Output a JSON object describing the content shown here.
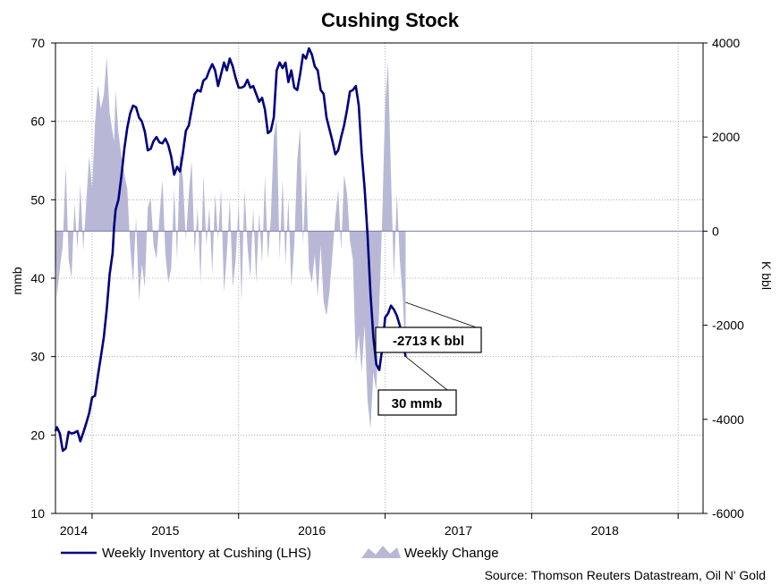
{
  "chart_data": {
    "type": "line",
    "title": "Cushing Stock",
    "ylabel_left": "mmb",
    "ylabel_right": "K bbl",
    "ylim_left": [
      10,
      70
    ],
    "yticks_left": [
      "10",
      "20",
      "30",
      "40",
      "50",
      "60",
      "70"
    ],
    "ylim_right": [
      -6000,
      4000
    ],
    "yticks_right": [
      "-6000",
      "-4000",
      "-2000",
      "0",
      "2000",
      "4000"
    ],
    "x_tick_labels": [
      "2014",
      "2015",
      "2016",
      "2017",
      "2018"
    ],
    "x_start": 2013.75,
    "x_end": 2018.17,
    "year_boundaries": [
      2014.0,
      2015.0,
      2016.0,
      2017.0,
      2018.0
    ],
    "series": [
      {
        "name": "Weekly Inventory at Cushing (LHS)",
        "axis": "left",
        "color": "#00007f",
        "points": [
          [
            2013.75,
            20.5
          ],
          [
            2013.76,
            21.0
          ],
          [
            2013.78,
            20.2
          ],
          [
            2013.8,
            18.0
          ],
          [
            2013.82,
            18.3
          ],
          [
            2013.84,
            20.4
          ],
          [
            2013.86,
            20.2
          ],
          [
            2013.88,
            20.3
          ],
          [
            2013.9,
            20.5
          ],
          [
            2013.92,
            19.2
          ],
          [
            2013.94,
            20.3
          ],
          [
            2013.96,
            21.5
          ],
          [
            2013.98,
            22.8
          ],
          [
            2014.0,
            24.8
          ],
          [
            2014.02,
            25.0
          ],
          [
            2014.04,
            27.6
          ],
          [
            2014.06,
            30.0
          ],
          [
            2014.08,
            32.5
          ],
          [
            2014.1,
            36.0
          ],
          [
            2014.12,
            40.5
          ],
          [
            2014.14,
            43.2
          ],
          [
            2014.15,
            46.5
          ],
          [
            2014.16,
            48.7
          ],
          [
            2014.18,
            50.0
          ],
          [
            2014.2,
            53.0
          ],
          [
            2014.22,
            56.5
          ],
          [
            2014.24,
            59.2
          ],
          [
            2014.26,
            61.0
          ],
          [
            2014.28,
            62.0
          ],
          [
            2014.3,
            61.8
          ],
          [
            2014.32,
            60.5
          ],
          [
            2014.34,
            60.0
          ],
          [
            2014.36,
            58.7
          ],
          [
            2014.38,
            56.3
          ],
          [
            2014.4,
            56.5
          ],
          [
            2014.42,
            57.5
          ],
          [
            2014.44,
            58.0
          ],
          [
            2014.46,
            57.3
          ],
          [
            2014.48,
            57.2
          ],
          [
            2014.5,
            57.8
          ],
          [
            2014.52,
            57.0
          ],
          [
            2014.54,
            55.5
          ],
          [
            2014.56,
            53.2
          ],
          [
            2014.58,
            54.2
          ],
          [
            2014.6,
            53.6
          ],
          [
            2014.62,
            56.0
          ],
          [
            2014.64,
            58.8
          ],
          [
            2014.66,
            59.5
          ],
          [
            2014.68,
            61.5
          ],
          [
            2014.7,
            63.5
          ],
          [
            2014.72,
            64.0
          ],
          [
            2014.74,
            63.8
          ],
          [
            2014.76,
            65.2
          ],
          [
            2014.78,
            65.5
          ],
          [
            2014.8,
            66.5
          ],
          [
            2014.82,
            67.3
          ],
          [
            2014.84,
            66.5
          ],
          [
            2014.86,
            64.5
          ],
          [
            2014.88,
            66.0
          ],
          [
            2014.9,
            67.5
          ],
          [
            2014.92,
            66.5
          ],
          [
            2014.94,
            68.0
          ],
          [
            2014.96,
            67.0
          ],
          [
            2014.98,
            65.5
          ],
          [
            2015.0,
            64.3
          ],
          [
            2015.02,
            64.3
          ],
          [
            2015.04,
            64.5
          ],
          [
            2015.06,
            65.3
          ],
          [
            2015.08,
            64.3
          ],
          [
            2015.1,
            64.5
          ],
          [
            2015.12,
            63.5
          ],
          [
            2015.14,
            62.5
          ],
          [
            2015.16,
            63.0
          ],
          [
            2015.18,
            61.5
          ],
          [
            2015.2,
            58.5
          ],
          [
            2015.22,
            58.8
          ],
          [
            2015.24,
            60.5
          ],
          [
            2015.26,
            66.5
          ],
          [
            2015.28,
            67.5
          ],
          [
            2015.3,
            66.8
          ],
          [
            2015.32,
            67.5
          ],
          [
            2015.34,
            65.0
          ],
          [
            2015.36,
            66.5
          ],
          [
            2015.38,
            64.3
          ],
          [
            2015.4,
            64.0
          ],
          [
            2015.42,
            66.0
          ],
          [
            2015.44,
            68.5
          ],
          [
            2015.46,
            68.0
          ],
          [
            2015.48,
            69.3
          ],
          [
            2015.5,
            68.5
          ],
          [
            2015.52,
            67.0
          ],
          [
            2015.54,
            66.5
          ],
          [
            2015.56,
            64.0
          ],
          [
            2015.58,
            63.5
          ],
          [
            2015.6,
            60.5
          ],
          [
            2015.62,
            59.0
          ],
          [
            2015.64,
            57.5
          ],
          [
            2015.66,
            55.8
          ],
          [
            2015.68,
            56.3
          ],
          [
            2015.7,
            58.0
          ],
          [
            2015.72,
            59.5
          ],
          [
            2015.74,
            61.5
          ],
          [
            2015.76,
            63.8
          ],
          [
            2015.78,
            64.0
          ],
          [
            2015.8,
            64.5
          ],
          [
            2015.82,
            62.0
          ],
          [
            2015.84,
            56.0
          ],
          [
            2015.86,
            51.5
          ],
          [
            2015.88,
            45.5
          ],
          [
            2015.9,
            38.0
          ],
          [
            2015.92,
            32.5
          ],
          [
            2015.94,
            29.0
          ],
          [
            2015.96,
            28.3
          ],
          [
            2015.98,
            31.0
          ],
          [
            2016.0,
            35.0
          ],
          [
            2016.02,
            35.5
          ],
          [
            2016.04,
            36.5
          ],
          [
            2016.06,
            36.0
          ],
          [
            2016.08,
            35.2
          ],
          [
            2016.1,
            34.0
          ],
          [
            2016.12,
            32.0
          ],
          [
            2016.14,
            30.0
          ]
        ]
      },
      {
        "name": "Weekly Change",
        "axis": "right",
        "color": "#b8b8d6",
        "points": [
          [
            2013.75,
            -200
          ],
          [
            2013.76,
            -1400
          ],
          [
            2013.78,
            -800
          ],
          [
            2013.8,
            -300
          ],
          [
            2013.82,
            1400
          ],
          [
            2013.84,
            -600
          ],
          [
            2013.86,
            -1000
          ],
          [
            2013.88,
            600
          ],
          [
            2013.9,
            -400
          ],
          [
            2013.92,
            1000
          ],
          [
            2013.94,
            -400
          ],
          [
            2013.96,
            600
          ],
          [
            2013.98,
            1600
          ],
          [
            2014.0,
            900
          ],
          [
            2014.02,
            2300
          ],
          [
            2014.04,
            3100
          ],
          [
            2014.06,
            2600
          ],
          [
            2014.08,
            2900
          ],
          [
            2014.1,
            3700
          ],
          [
            2014.12,
            2500
          ],
          [
            2014.14,
            2100
          ],
          [
            2014.15,
            1900
          ],
          [
            2014.16,
            3000
          ],
          [
            2014.18,
            2100
          ],
          [
            2014.2,
            1600
          ],
          [
            2014.22,
            1200
          ],
          [
            2014.24,
            900
          ],
          [
            2014.26,
            -300
          ],
          [
            2014.28,
            -1100
          ],
          [
            2014.3,
            300
          ],
          [
            2014.32,
            -1500
          ],
          [
            2014.34,
            -700
          ],
          [
            2014.36,
            -1200
          ],
          [
            2014.38,
            500
          ],
          [
            2014.4,
            700
          ],
          [
            2014.42,
            -300
          ],
          [
            2014.44,
            -600
          ],
          [
            2014.46,
            300
          ],
          [
            2014.48,
            1100
          ],
          [
            2014.5,
            -500
          ],
          [
            2014.52,
            -1100
          ],
          [
            2014.54,
            -800
          ],
          [
            2014.56,
            900
          ],
          [
            2014.58,
            -600
          ],
          [
            2014.6,
            1700
          ],
          [
            2014.62,
            1100
          ],
          [
            2014.64,
            -200
          ],
          [
            2014.66,
            800
          ],
          [
            2014.68,
            1500
          ],
          [
            2014.7,
            -500
          ],
          [
            2014.72,
            500
          ],
          [
            2014.74,
            -1100
          ],
          [
            2014.76,
            1200
          ],
          [
            2014.78,
            -300
          ],
          [
            2014.8,
            500
          ],
          [
            2014.82,
            -900
          ],
          [
            2014.84,
            800
          ],
          [
            2014.86,
            -200
          ],
          [
            2014.88,
            900
          ],
          [
            2014.9,
            -1300
          ],
          [
            2014.92,
            -500
          ],
          [
            2014.94,
            700
          ],
          [
            2014.96,
            -1200
          ],
          [
            2014.98,
            -600
          ],
          [
            2015.0,
            600
          ],
          [
            2015.02,
            -1500
          ],
          [
            2015.04,
            900
          ],
          [
            2015.06,
            -300
          ],
          [
            2015.08,
            -1000
          ],
          [
            2015.1,
            500
          ],
          [
            2015.12,
            -1100
          ],
          [
            2015.14,
            400
          ],
          [
            2015.16,
            -700
          ],
          [
            2015.18,
            1200
          ],
          [
            2015.2,
            -600
          ],
          [
            2015.22,
            300
          ],
          [
            2015.24,
            2000
          ],
          [
            2015.26,
            2400
          ],
          [
            2015.28,
            -600
          ],
          [
            2015.3,
            1100
          ],
          [
            2015.32,
            -700
          ],
          [
            2015.34,
            700
          ],
          [
            2015.36,
            -1200
          ],
          [
            2015.38,
            -300
          ],
          [
            2015.4,
            1500
          ],
          [
            2015.42,
            2200
          ],
          [
            2015.44,
            -300
          ],
          [
            2015.46,
            1300
          ],
          [
            2015.48,
            -800
          ],
          [
            2015.5,
            -1100
          ],
          [
            2015.52,
            -500
          ],
          [
            2015.54,
            -1400
          ],
          [
            2015.56,
            -300
          ],
          [
            2015.58,
            -1500
          ],
          [
            2015.6,
            -1800
          ],
          [
            2015.62,
            -1300
          ],
          [
            2015.64,
            -500
          ],
          [
            2015.66,
            300
          ],
          [
            2015.68,
            900
          ],
          [
            2015.7,
            -400
          ],
          [
            2015.72,
            1200
          ],
          [
            2015.74,
            800
          ],
          [
            2015.76,
            -200
          ],
          [
            2015.78,
            -600
          ],
          [
            2015.8,
            -2800
          ],
          [
            2015.82,
            -2200
          ],
          [
            2015.84,
            -3000
          ],
          [
            2015.86,
            -2000
          ],
          [
            2015.88,
            -3600
          ],
          [
            2015.9,
            -4200
          ],
          [
            2015.92,
            -3000
          ],
          [
            2015.94,
            -3400
          ],
          [
            2015.96,
            -1600
          ],
          [
            2015.98,
            300
          ],
          [
            2016.0,
            2700
          ],
          [
            2016.02,
            3600
          ],
          [
            2016.04,
            1200
          ],
          [
            2016.06,
            -1000
          ],
          [
            2016.08,
            800
          ],
          [
            2016.1,
            -600
          ],
          [
            2016.12,
            -1400
          ],
          [
            2016.14,
            -2713
          ]
        ]
      }
    ],
    "annotations": [
      {
        "text": "-2713 K bbl",
        "refers_to": "Weekly Change",
        "value": -2713
      },
      {
        "text": "30 mmb",
        "refers_to": "Weekly Inventory at Cushing (LHS)",
        "value": 30
      }
    ],
    "legend": [
      {
        "label": "Weekly Inventory at Cushing (LHS)",
        "style": "line"
      },
      {
        "label": "Weekly Change",
        "style": "area"
      }
    ],
    "legend_position": "bottom",
    "source": "Source: Thomson Reuters Datastream, Oil N' Gold",
    "grid": true
  }
}
